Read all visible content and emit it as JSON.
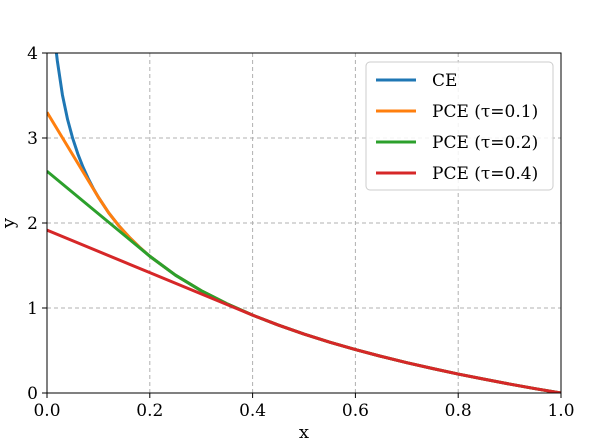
{
  "chart_data": {
    "type": "line",
    "title": "",
    "xlabel": "x",
    "ylabel": "y",
    "xlim": [
      0.0,
      1.0
    ],
    "ylim": [
      0,
      4
    ],
    "xticks": [
      0.0,
      0.2,
      0.4,
      0.6,
      0.8,
      1.0
    ],
    "xtick_labels": [
      "0.0",
      "0.2",
      "0.4",
      "0.6",
      "0.8",
      "1.0"
    ],
    "yticks": [
      0,
      1,
      2,
      3,
      4
    ],
    "ytick_labels": [
      "0",
      "1",
      "2",
      "3",
      "4"
    ],
    "grid": true,
    "legend_position": "top-right",
    "series": [
      {
        "name": "CE",
        "color": "#1f77b4",
        "x": [
          0.018,
          0.02,
          0.03,
          0.04,
          0.05,
          0.06,
          0.07,
          0.08,
          0.09,
          0.1,
          0.12,
          0.14,
          0.16,
          0.18,
          0.2,
          0.25,
          0.3,
          0.35,
          0.4,
          0.45,
          0.5,
          0.55,
          0.6,
          0.65,
          0.7,
          0.75,
          0.8,
          0.85,
          0.9,
          0.95,
          1.0
        ],
        "y": [
          4.017,
          3.912,
          3.507,
          3.219,
          2.996,
          2.813,
          2.659,
          2.526,
          2.408,
          2.303,
          2.12,
          1.966,
          1.833,
          1.715,
          1.609,
          1.386,
          1.204,
          1.05,
          0.916,
          0.799,
          0.693,
          0.598,
          0.511,
          0.431,
          0.357,
          0.288,
          0.223,
          0.163,
          0.105,
          0.051,
          0.0
        ]
      },
      {
        "name": "PCE (τ=0.1)",
        "color": "#ff7f0e",
        "x": [
          0.0,
          0.02,
          0.04,
          0.06,
          0.08,
          0.1,
          0.12,
          0.14,
          0.16,
          0.18,
          0.2,
          0.25,
          0.3,
          0.35,
          0.4,
          0.45,
          0.5,
          0.55,
          0.6,
          0.65,
          0.7,
          0.75,
          0.8,
          0.85,
          0.9,
          0.95,
          1.0
        ],
        "y": [
          3.303,
          3.103,
          2.903,
          2.703,
          2.503,
          2.303,
          2.12,
          1.966,
          1.833,
          1.715,
          1.609,
          1.386,
          1.204,
          1.05,
          0.916,
          0.799,
          0.693,
          0.598,
          0.511,
          0.431,
          0.357,
          0.288,
          0.223,
          0.163,
          0.105,
          0.051,
          0.0
        ]
      },
      {
        "name": "PCE (τ=0.2)",
        "color": "#2ca02c",
        "x": [
          0.0,
          0.04,
          0.08,
          0.12,
          0.16,
          0.2,
          0.25,
          0.3,
          0.35,
          0.4,
          0.45,
          0.5,
          0.55,
          0.6,
          0.65,
          0.7,
          0.75,
          0.8,
          0.85,
          0.9,
          0.95,
          1.0
        ],
        "y": [
          2.609,
          2.409,
          2.209,
          2.009,
          1.809,
          1.609,
          1.386,
          1.204,
          1.05,
          0.916,
          0.799,
          0.693,
          0.598,
          0.511,
          0.431,
          0.357,
          0.288,
          0.223,
          0.163,
          0.105,
          0.051,
          0.0
        ]
      },
      {
        "name": "PCE (τ=0.4)",
        "color": "#d62728",
        "x": [
          0.0,
          0.1,
          0.2,
          0.3,
          0.4,
          0.45,
          0.5,
          0.55,
          0.6,
          0.65,
          0.7,
          0.75,
          0.8,
          0.85,
          0.9,
          0.95,
          1.0
        ],
        "y": [
          1.916,
          1.666,
          1.416,
          1.166,
          0.916,
          0.799,
          0.693,
          0.598,
          0.511,
          0.431,
          0.357,
          0.288,
          0.223,
          0.163,
          0.105,
          0.051,
          0.0
        ]
      }
    ]
  }
}
